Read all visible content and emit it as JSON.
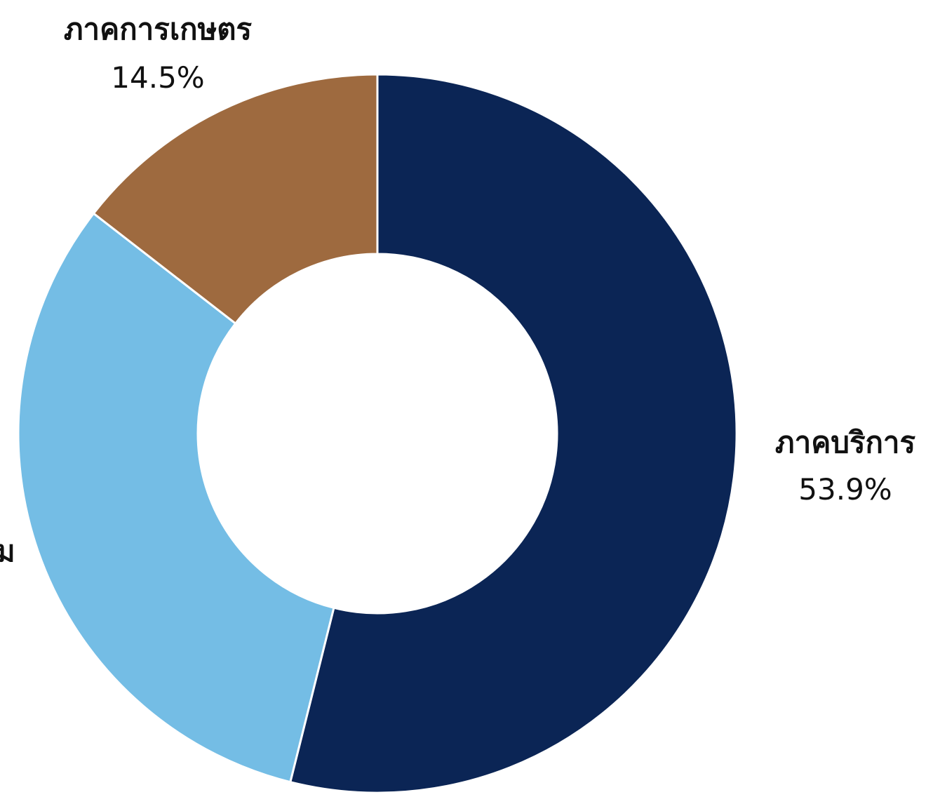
{
  "chart_data": {
    "type": "pie",
    "variant": "donut",
    "slices": [
      {
        "label": "ภาคบริการ",
        "value": 53.9,
        "value_text": "53.9%",
        "color": "#0B2555"
      },
      {
        "label": "",
        "value": 31.6,
        "value_text": "",
        "color": "#74BDE5"
      },
      {
        "label": "ภาคการเกษตร",
        "value": 14.5,
        "value_text": "14.5%",
        "color": "#9E6A3F"
      }
    ],
    "partial_label_fragment": "ม",
    "start_angle": "12 o'clock",
    "direction": "clockwise"
  }
}
